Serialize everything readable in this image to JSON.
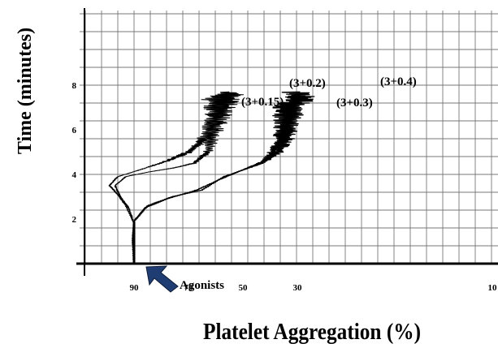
{
  "chart_data": {
    "type": "line",
    "title": "",
    "xlabel": "Platelet Aggregation (%)",
    "ylabel": "Time (minutes)",
    "xlim": [
      100,
      0
    ],
    "ylim": [
      0,
      10
    ],
    "x_ticks": [
      "90",
      "70",
      "50",
      "30",
      "10"
    ],
    "y_ticks": [
      "2",
      "4",
      "6",
      "8"
    ],
    "grid": true,
    "annotation": {
      "text": "Agonists",
      "arrow_color": "#1f3d73",
      "points_to": {
        "x": 90,
        "y": 0
      }
    },
    "series": [
      {
        "name": "(3+0.15)",
        "points": [
          [
            90,
            0
          ],
          [
            90.5,
            1.0
          ],
          [
            90,
            1.8
          ],
          [
            92,
            2.5
          ],
          [
            95,
            3.0
          ],
          [
            97,
            3.5
          ],
          [
            93,
            3.9
          ],
          [
            85,
            4.1
          ],
          [
            75,
            4.3
          ],
          [
            68,
            4.5
          ],
          [
            63,
            5.0
          ],
          [
            61,
            5.8
          ],
          [
            59,
            6.8
          ],
          [
            59,
            7.5
          ]
        ]
      },
      {
        "name": "(3+0.2)",
        "points": [
          [
            90,
            0
          ],
          [
            90.5,
            1.0
          ],
          [
            90,
            1.8
          ],
          [
            93,
            2.6
          ],
          [
            96,
            3.1
          ],
          [
            99,
            3.5
          ],
          [
            96,
            3.9
          ],
          [
            88,
            4.2
          ],
          [
            78,
            4.6
          ],
          [
            70,
            5.0
          ],
          [
            64,
            5.6
          ],
          [
            60,
            6.4
          ],
          [
            57,
            7.2
          ],
          [
            55,
            7.7
          ]
        ]
      },
      {
        "name": "(3+0.3)",
        "points": [
          [
            90,
            0
          ],
          [
            90.5,
            1.0
          ],
          [
            90,
            1.9
          ],
          [
            85,
            2.6
          ],
          [
            76,
            3.0
          ],
          [
            65,
            3.3
          ],
          [
            57,
            3.9
          ],
          [
            50,
            4.2
          ],
          [
            42,
            4.6
          ],
          [
            37,
            5.3
          ],
          [
            35,
            6.0
          ],
          [
            34,
            6.8
          ],
          [
            34,
            7.2
          ]
        ]
      },
      {
        "name": "(3+0.4)",
        "points": [
          [
            90,
            0
          ],
          [
            90.5,
            1.0
          ],
          [
            90,
            1.9
          ],
          [
            86,
            2.5
          ],
          [
            78,
            2.9
          ],
          [
            67,
            3.3
          ],
          [
            58,
            3.8
          ],
          [
            50,
            4.2
          ],
          [
            43,
            4.5
          ],
          [
            37,
            5.0
          ],
          [
            34,
            5.6
          ],
          [
            33,
            6.4
          ],
          [
            31,
            7.2
          ],
          [
            29,
            7.7
          ]
        ]
      }
    ]
  }
}
